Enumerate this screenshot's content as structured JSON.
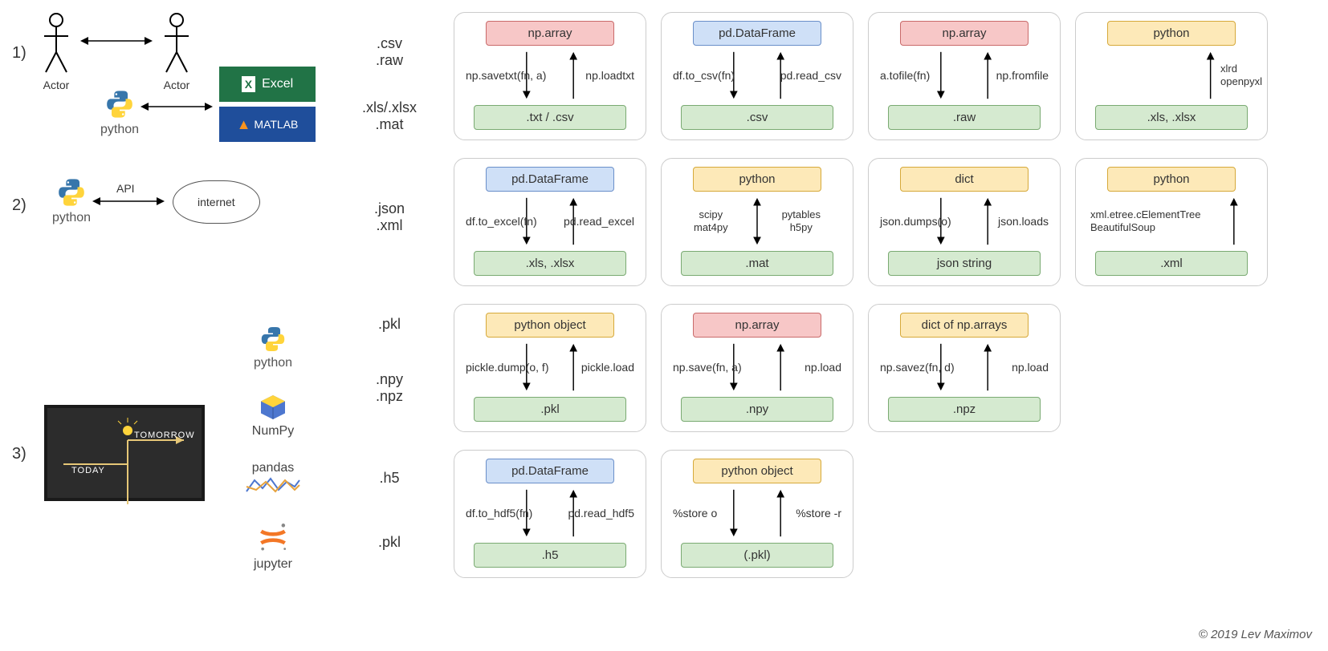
{
  "credit": "© 2019 Lev Maximov",
  "colors": {
    "panel_border": "#cccccc",
    "red_fill": "#f7c7c7",
    "red_border": "#c96a6a",
    "blue_fill": "#cfe0f7",
    "blue_border": "#6a8fc9",
    "yellow_fill": "#fde9b8",
    "yellow_border": "#d6a93a",
    "green_fill": "#d5ead0",
    "green_border": "#7aaa72",
    "excel_bg": "#217346",
    "matlab_bg": "#1f4e9b",
    "blackboard_bg": "#2c2c2c",
    "text": "#333333",
    "bg": "#ffffff"
  },
  "left": {
    "rows": [
      "1)",
      "2)",
      "3)"
    ],
    "actor": "Actor",
    "python": "python",
    "excel": "Excel",
    "matlab": "MATLAB",
    "api": "API",
    "internet": "internet",
    "numpy": "NumPy",
    "pandas": "pandas",
    "jupyter": "jupyter",
    "today": "TODAY",
    "tomorrow": "TOMORROW"
  },
  "formats": {
    "row1_top": ".csv",
    "row1_top2": ".raw",
    "row1_mid": ".xls/.xlsx",
    "row1_mid2": ".mat",
    "row2_a": ".json",
    "row2_b": ".xml",
    "row3_a": ".pkl",
    "row3_b": ".npy",
    "row3_c": ".npz",
    "row4_a": ".h5",
    "row4_b": ".pkl"
  },
  "panels": [
    [
      {
        "top": "np.array",
        "top_color": "red",
        "left": "np.savetxt(fn, a)",
        "right": "np.loadtxt",
        "bottom": ".txt / .csv",
        "mode": "two"
      },
      {
        "top": "pd.DataFrame",
        "top_color": "blue",
        "left": "df.to_csv(fn)",
        "right": "pd.read_csv",
        "bottom": ".csv",
        "mode": "two"
      },
      {
        "top": "np.array",
        "top_color": "red",
        "left": "a.tofile(fn)",
        "right": "np.fromfile",
        "bottom": ".raw",
        "mode": "two"
      },
      {
        "top": "python",
        "top_color": "yellow",
        "center": "xlrd\nopenpyxl",
        "bottom": ".xls, .xlsx",
        "mode": "up"
      }
    ],
    [
      {
        "top": "pd.DataFrame",
        "top_color": "blue",
        "left": "df.to_excel(fn)",
        "right": "pd.read_excel",
        "bottom": ".xls, .xlsx",
        "mode": "two"
      },
      {
        "top": "python",
        "top_color": "yellow",
        "left": "scipy\nmat4py",
        "right": "pytables\nh5py",
        "bottom": ".mat",
        "mode": "updown"
      },
      {
        "top": "dict",
        "top_color": "yellow",
        "left": "json.dumps(o)",
        "right": "json.loads",
        "bottom": "json string",
        "mode": "two"
      },
      {
        "top": "python",
        "top_color": "yellow",
        "center": "xml.etree.cElementTree\nBeautifulSoup",
        "bottom": ".xml",
        "mode": "up"
      }
    ],
    [
      {
        "top": "python object",
        "top_color": "yellow",
        "left": "pickle.dump(o, f)",
        "right": "pickle.load",
        "bottom": ".pkl",
        "mode": "two"
      },
      {
        "top": "np.array",
        "top_color": "red",
        "left": "np.save(fn, a)",
        "right": "np.load",
        "bottom": ".npy",
        "mode": "two"
      },
      {
        "top": "dict of np.arrays",
        "top_color": "yellow",
        "left": "np.savez(fn, d)",
        "right": "np.load",
        "bottom": ".npz",
        "mode": "two"
      }
    ],
    [
      {
        "top": "pd.DataFrame",
        "top_color": "blue",
        "left": "df.to_hdf5(fn)",
        "right": "pd.read_hdf5",
        "bottom": ".h5",
        "mode": "two"
      },
      {
        "top": "python object",
        "top_color": "yellow",
        "left": "%store o",
        "right": "%store -r",
        "bottom": "(.pkl)",
        "mode": "two"
      }
    ]
  ]
}
